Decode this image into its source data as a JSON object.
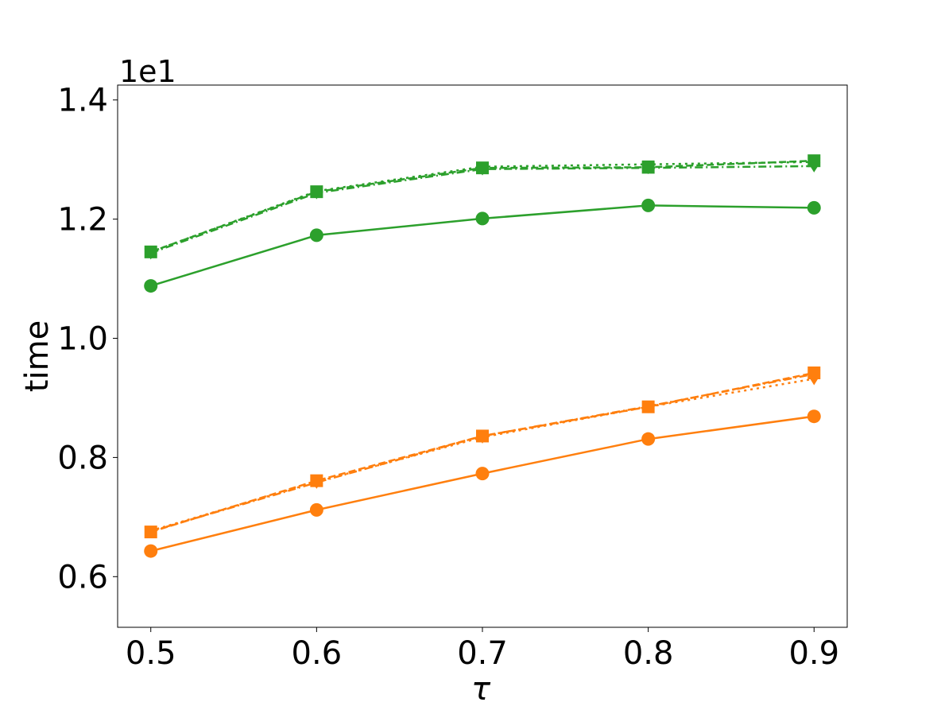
{
  "chart_data": {
    "type": "line",
    "xlabel": "τ",
    "ylabel": "time",
    "offset_text": "1e1",
    "x": [
      0.5,
      0.6,
      0.7,
      0.8,
      0.9
    ],
    "x_ticks": [
      "0.5",
      "0.6",
      "0.7",
      "0.8",
      "0.9"
    ],
    "y_ticks": [
      "0.6",
      "0.8",
      "1.0",
      "1.2",
      "1.4"
    ],
    "xlim": [
      0.48,
      0.92
    ],
    "ylim": [
      0.515,
      1.425
    ],
    "grid": false,
    "legend": "none",
    "series": [
      {
        "color": "#2ca02c",
        "style": "solid",
        "marker": "circle",
        "values": [
          1.088,
          1.173,
          1.201,
          1.223,
          1.219
        ]
      },
      {
        "color": "#2ca02c",
        "style": "dashdot",
        "marker": "triangle-down",
        "values": [
          1.143,
          1.244,
          1.284,
          1.286,
          1.289
        ]
      },
      {
        "color": "#2ca02c",
        "style": "dotted",
        "marker": "triangle-down",
        "values": [
          1.145,
          1.247,
          1.288,
          1.292,
          1.296
        ]
      },
      {
        "color": "#2ca02c",
        "style": "dashed",
        "marker": "square",
        "values": [
          1.145,
          1.246,
          1.286,
          1.287,
          1.298
        ]
      },
      {
        "color": "#ff7f0e",
        "style": "solid",
        "marker": "circle",
        "values": [
          0.643,
          0.712,
          0.773,
          0.831,
          0.869
        ]
      },
      {
        "color": "#ff7f0e",
        "style": "dashdot",
        "marker": "triangle-down",
        "values": [
          0.676,
          0.758,
          0.836,
          0.886,
          0.94
        ]
      },
      {
        "color": "#ff7f0e",
        "style": "dotted",
        "marker": "triangle-down",
        "values": [
          0.677,
          0.759,
          0.834,
          0.885,
          0.932
        ]
      },
      {
        "color": "#ff7f0e",
        "style": "dashed",
        "marker": "square",
        "values": [
          0.675,
          0.761,
          0.836,
          0.885,
          0.942
        ]
      }
    ]
  }
}
